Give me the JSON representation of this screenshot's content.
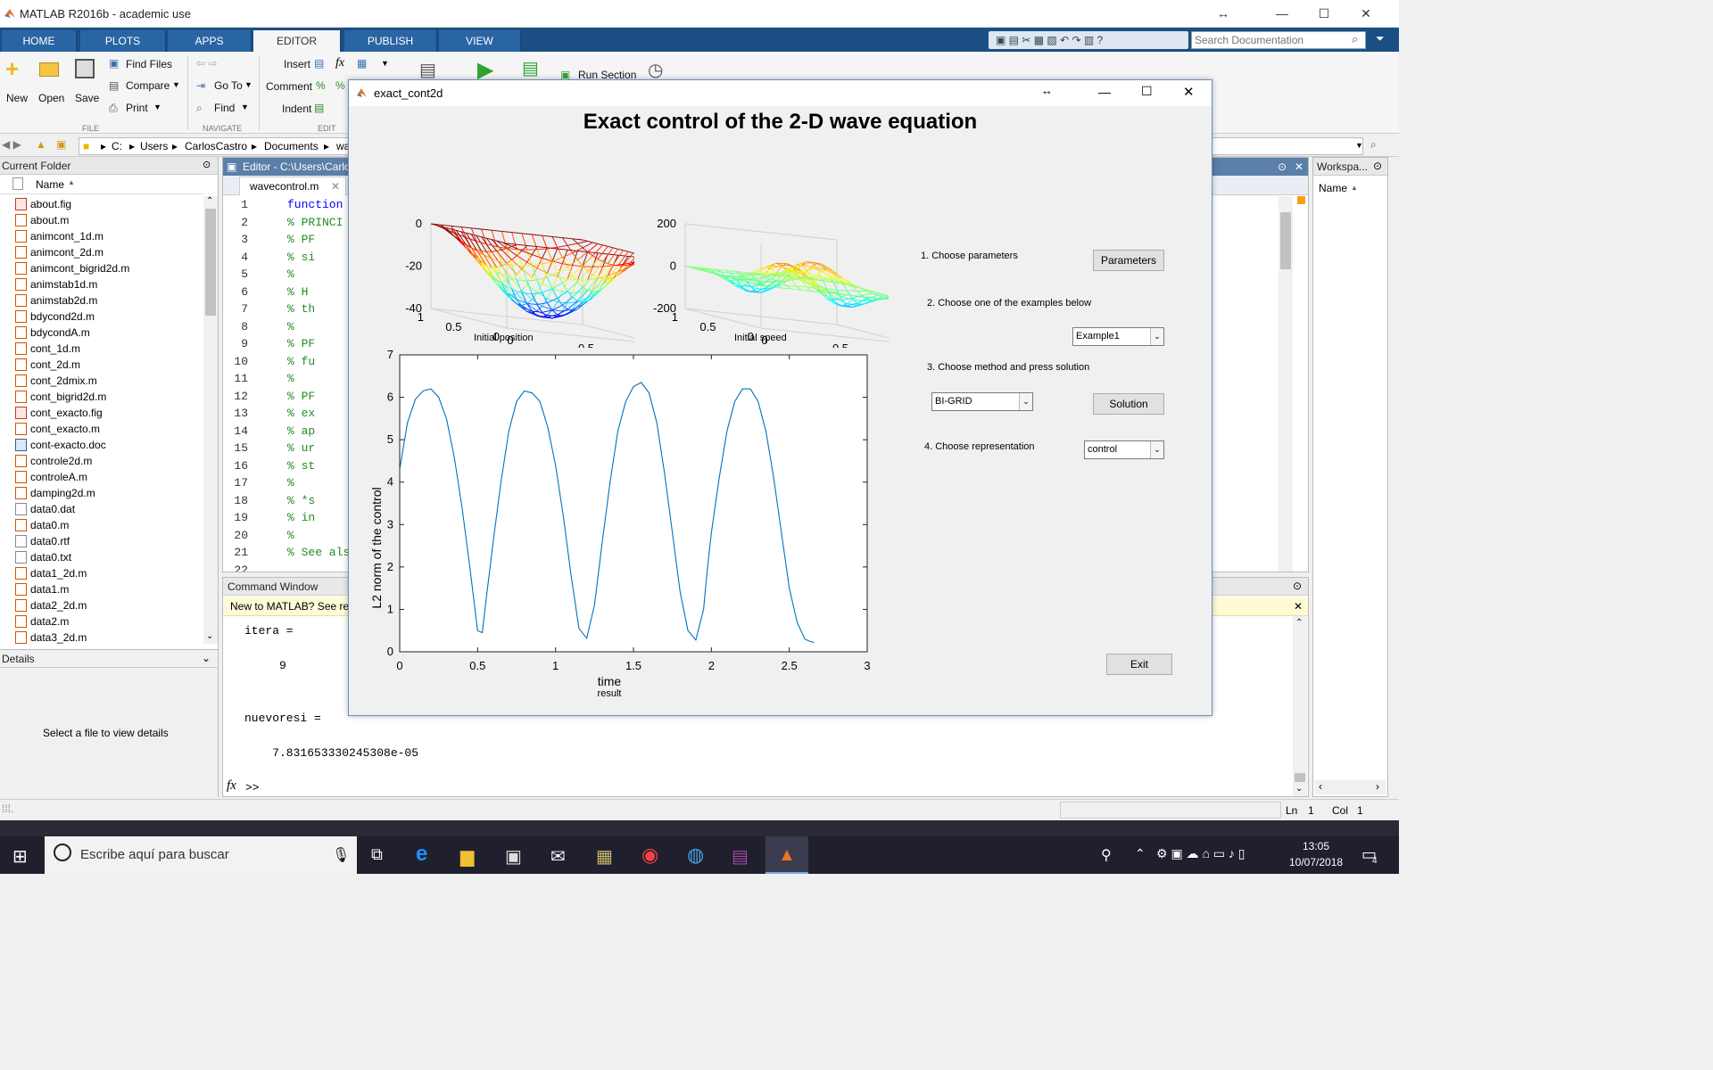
{
  "window": {
    "title": "MATLAB R2016b - academic use"
  },
  "tabs": [
    "HOME",
    "PLOTS",
    "APPS",
    "EDITOR",
    "PUBLISH",
    "VIEW"
  ],
  "search": {
    "placeholder": "Search Documentation"
  },
  "ribbon": {
    "file": {
      "new": "New",
      "open": "Open",
      "save": "Save",
      "find_files": "Find Files",
      "compare": "Compare",
      "print": "Print",
      "group": "FILE"
    },
    "navigate": {
      "goto": "Go To",
      "find": "Find",
      "group": "NAVIGATE"
    },
    "edit": {
      "insert": "Insert",
      "comment": "Comment",
      "indent": "Indent",
      "group": "EDIT"
    },
    "run": {
      "run_section": "Run Section"
    }
  },
  "address": [
    "C:",
    "Users",
    "CarlosCastro",
    "Documents",
    "wa"
  ],
  "current_folder": {
    "title": "Current Folder",
    "column": "Name",
    "files": [
      {
        "name": "about.fig",
        "type": "f"
      },
      {
        "name": "about.m",
        "type": "m"
      },
      {
        "name": "animcont_1d.m",
        "type": "m"
      },
      {
        "name": "animcont_2d.m",
        "type": "m"
      },
      {
        "name": "animcont_bigrid2d.m",
        "type": "m"
      },
      {
        "name": "animstab1d.m",
        "type": "m"
      },
      {
        "name": "animstab2d.m",
        "type": "m"
      },
      {
        "name": "bdycond2d.m",
        "type": "m"
      },
      {
        "name": "bdycondA.m",
        "type": "m"
      },
      {
        "name": "cont_1d.m",
        "type": "m"
      },
      {
        "name": "cont_2d.m",
        "type": "m"
      },
      {
        "name": "cont_2dmix.m",
        "type": "m"
      },
      {
        "name": "cont_bigrid2d.m",
        "type": "m"
      },
      {
        "name": "cont_exacto.fig",
        "type": "f"
      },
      {
        "name": "cont_exacto.m",
        "type": "m"
      },
      {
        "name": "cont-exacto.doc",
        "type": "d"
      },
      {
        "name": "controle2d.m",
        "type": "m"
      },
      {
        "name": "controleA.m",
        "type": "m"
      },
      {
        "name": "damping2d.m",
        "type": "m"
      },
      {
        "name": "data0.dat",
        "type": "t"
      },
      {
        "name": "data0.m",
        "type": "m"
      },
      {
        "name": "data0.rtf",
        "type": "t"
      },
      {
        "name": "data0.txt",
        "type": "t"
      },
      {
        "name": "data1_2d.m",
        "type": "m"
      },
      {
        "name": "data1.m",
        "type": "m"
      },
      {
        "name": "data2_2d.m",
        "type": "m"
      },
      {
        "name": "data2.m",
        "type": "m"
      },
      {
        "name": "data3_2d.m",
        "type": "m"
      }
    ]
  },
  "details": {
    "title": "Details",
    "message": "Select a file to view details"
  },
  "editor": {
    "title": "Editor - C:\\Users\\Carlo",
    "tab": "wavecontrol.m",
    "lines": [
      {
        "n": "1",
        "t": "function",
        "c": "kw"
      },
      {
        "n": "2",
        "t": "% PRINCI",
        "c": "cm"
      },
      {
        "n": "3",
        "t": "%      PF",
        "c": "cm"
      },
      {
        "n": "4",
        "t": "%      si",
        "c": "cm"
      },
      {
        "n": "5",
        "t": "%",
        "c": "cm"
      },
      {
        "n": "6",
        "t": "%      H",
        "c": "cm"
      },
      {
        "n": "7",
        "t": "%      th",
        "c": "cm"
      },
      {
        "n": "8",
        "t": "%",
        "c": "cm"
      },
      {
        "n": "9",
        "t": "%      PF",
        "c": "cm"
      },
      {
        "n": "10",
        "t": "%      fu",
        "c": "cm"
      },
      {
        "n": "11",
        "t": "%",
        "c": "cm"
      },
      {
        "n": "12",
        "t": "%      PF",
        "c": "cm"
      },
      {
        "n": "13",
        "t": "%      ex",
        "c": "cm"
      },
      {
        "n": "14",
        "t": "%      ap",
        "c": "cm"
      },
      {
        "n": "15",
        "t": "%      ur",
        "c": "cm"
      },
      {
        "n": "16",
        "t": "%      st",
        "c": "cm"
      },
      {
        "n": "17",
        "t": "%",
        "c": "cm"
      },
      {
        "n": "18",
        "t": "%      *s",
        "c": "cm"
      },
      {
        "n": "19",
        "t": "%      in",
        "c": "cm"
      },
      {
        "n": "20",
        "t": "%",
        "c": "cm"
      },
      {
        "n": "21",
        "t": "% See als",
        "c": "cm"
      },
      {
        "n": "22",
        "t": "",
        "c": "cm"
      }
    ]
  },
  "command_window": {
    "title": "Command Window",
    "banner": "New to MATLAB? See re",
    "output": [
      "itera =",
      "",
      "     9",
      "",
      "",
      "nuevoresi =",
      "",
      "    7.831653330245308e-05"
    ],
    "prompt": ">>"
  },
  "workspace": {
    "title": "Workspa...",
    "column": "Name"
  },
  "status": {
    "ln": "Ln",
    "ln_val": "1",
    "col": "Col",
    "col_val": "1"
  },
  "figure": {
    "title": "exact_cont2d",
    "heading": "Exact control of the 2-D wave equation",
    "step1": "1. Choose parameters",
    "step2": "2. Choose one of the examples below",
    "step3": "3. Choose method and press solution",
    "step4": "4. Choose representation",
    "parameters_btn": "Parameters",
    "example_sel": "Example1",
    "method_sel": "BI-GRID",
    "solution_btn": "Solution",
    "repr_sel": "control",
    "exit_btn": "Exit",
    "plot1": {
      "label": "Initial position",
      "zticks": [
        "0",
        "-20",
        "-40"
      ],
      "yticks": [
        "1",
        "0.5",
        "0"
      ],
      "xticks": [
        "0",
        "0.5",
        "1"
      ]
    },
    "plot2": {
      "label": "Initial speed",
      "zticks": [
        "200",
        "0",
        "-200"
      ],
      "yticks": [
        "1",
        "0.5",
        "0"
      ],
      "xticks": [
        "0",
        "0.5",
        "1"
      ]
    }
  },
  "chart_data": {
    "type": "line",
    "xlabel": "time",
    "ylabel": "L2 norm of the control",
    "subtitle": "result",
    "xlim": [
      0,
      3
    ],
    "ylim": [
      0,
      7
    ],
    "xticks": [
      "0",
      "0.5",
      "1",
      "1.5",
      "2",
      "2.5",
      "3"
    ],
    "yticks": [
      "0",
      "1",
      "2",
      "3",
      "4",
      "5",
      "6",
      "7"
    ],
    "series": [
      {
        "color": "#0072bd",
        "x": [
          0,
          0.05,
          0.1,
          0.15,
          0.2,
          0.25,
          0.3,
          0.35,
          0.4,
          0.45,
          0.5,
          0.53,
          0.55,
          0.6,
          0.65,
          0.7,
          0.75,
          0.8,
          0.85,
          0.9,
          0.95,
          1.0,
          1.05,
          1.1,
          1.15,
          1.2,
          1.25,
          1.3,
          1.35,
          1.4,
          1.45,
          1.5,
          1.55,
          1.6,
          1.65,
          1.7,
          1.75,
          1.8,
          1.85,
          1.9,
          1.95,
          1.97,
          2.0,
          2.05,
          2.1,
          2.15,
          2.2,
          2.25,
          2.3,
          2.35,
          2.4,
          2.45,
          2.5,
          2.55,
          2.6,
          2.63,
          2.66
        ],
        "y": [
          4.3,
          5.4,
          5.95,
          6.15,
          6.2,
          6.0,
          5.5,
          4.6,
          3.4,
          2.0,
          0.5,
          0.45,
          1.1,
          2.6,
          4.0,
          5.2,
          5.9,
          6.15,
          6.1,
          5.9,
          5.3,
          4.4,
          3.2,
          1.8,
          0.55,
          0.32,
          1.1,
          2.6,
          4.0,
          5.2,
          5.9,
          6.25,
          6.35,
          6.1,
          5.4,
          4.2,
          2.8,
          1.4,
          0.5,
          0.28,
          1.0,
          1.8,
          2.8,
          4.1,
          5.2,
          5.9,
          6.2,
          6.2,
          5.9,
          5.2,
          4.1,
          2.8,
          1.5,
          0.7,
          0.3,
          0.25,
          0.22
        ]
      }
    ]
  },
  "taskbar": {
    "search": "Escribe aquí para buscar",
    "time": "13:05",
    "date": "10/07/2018",
    "notif": "4"
  }
}
